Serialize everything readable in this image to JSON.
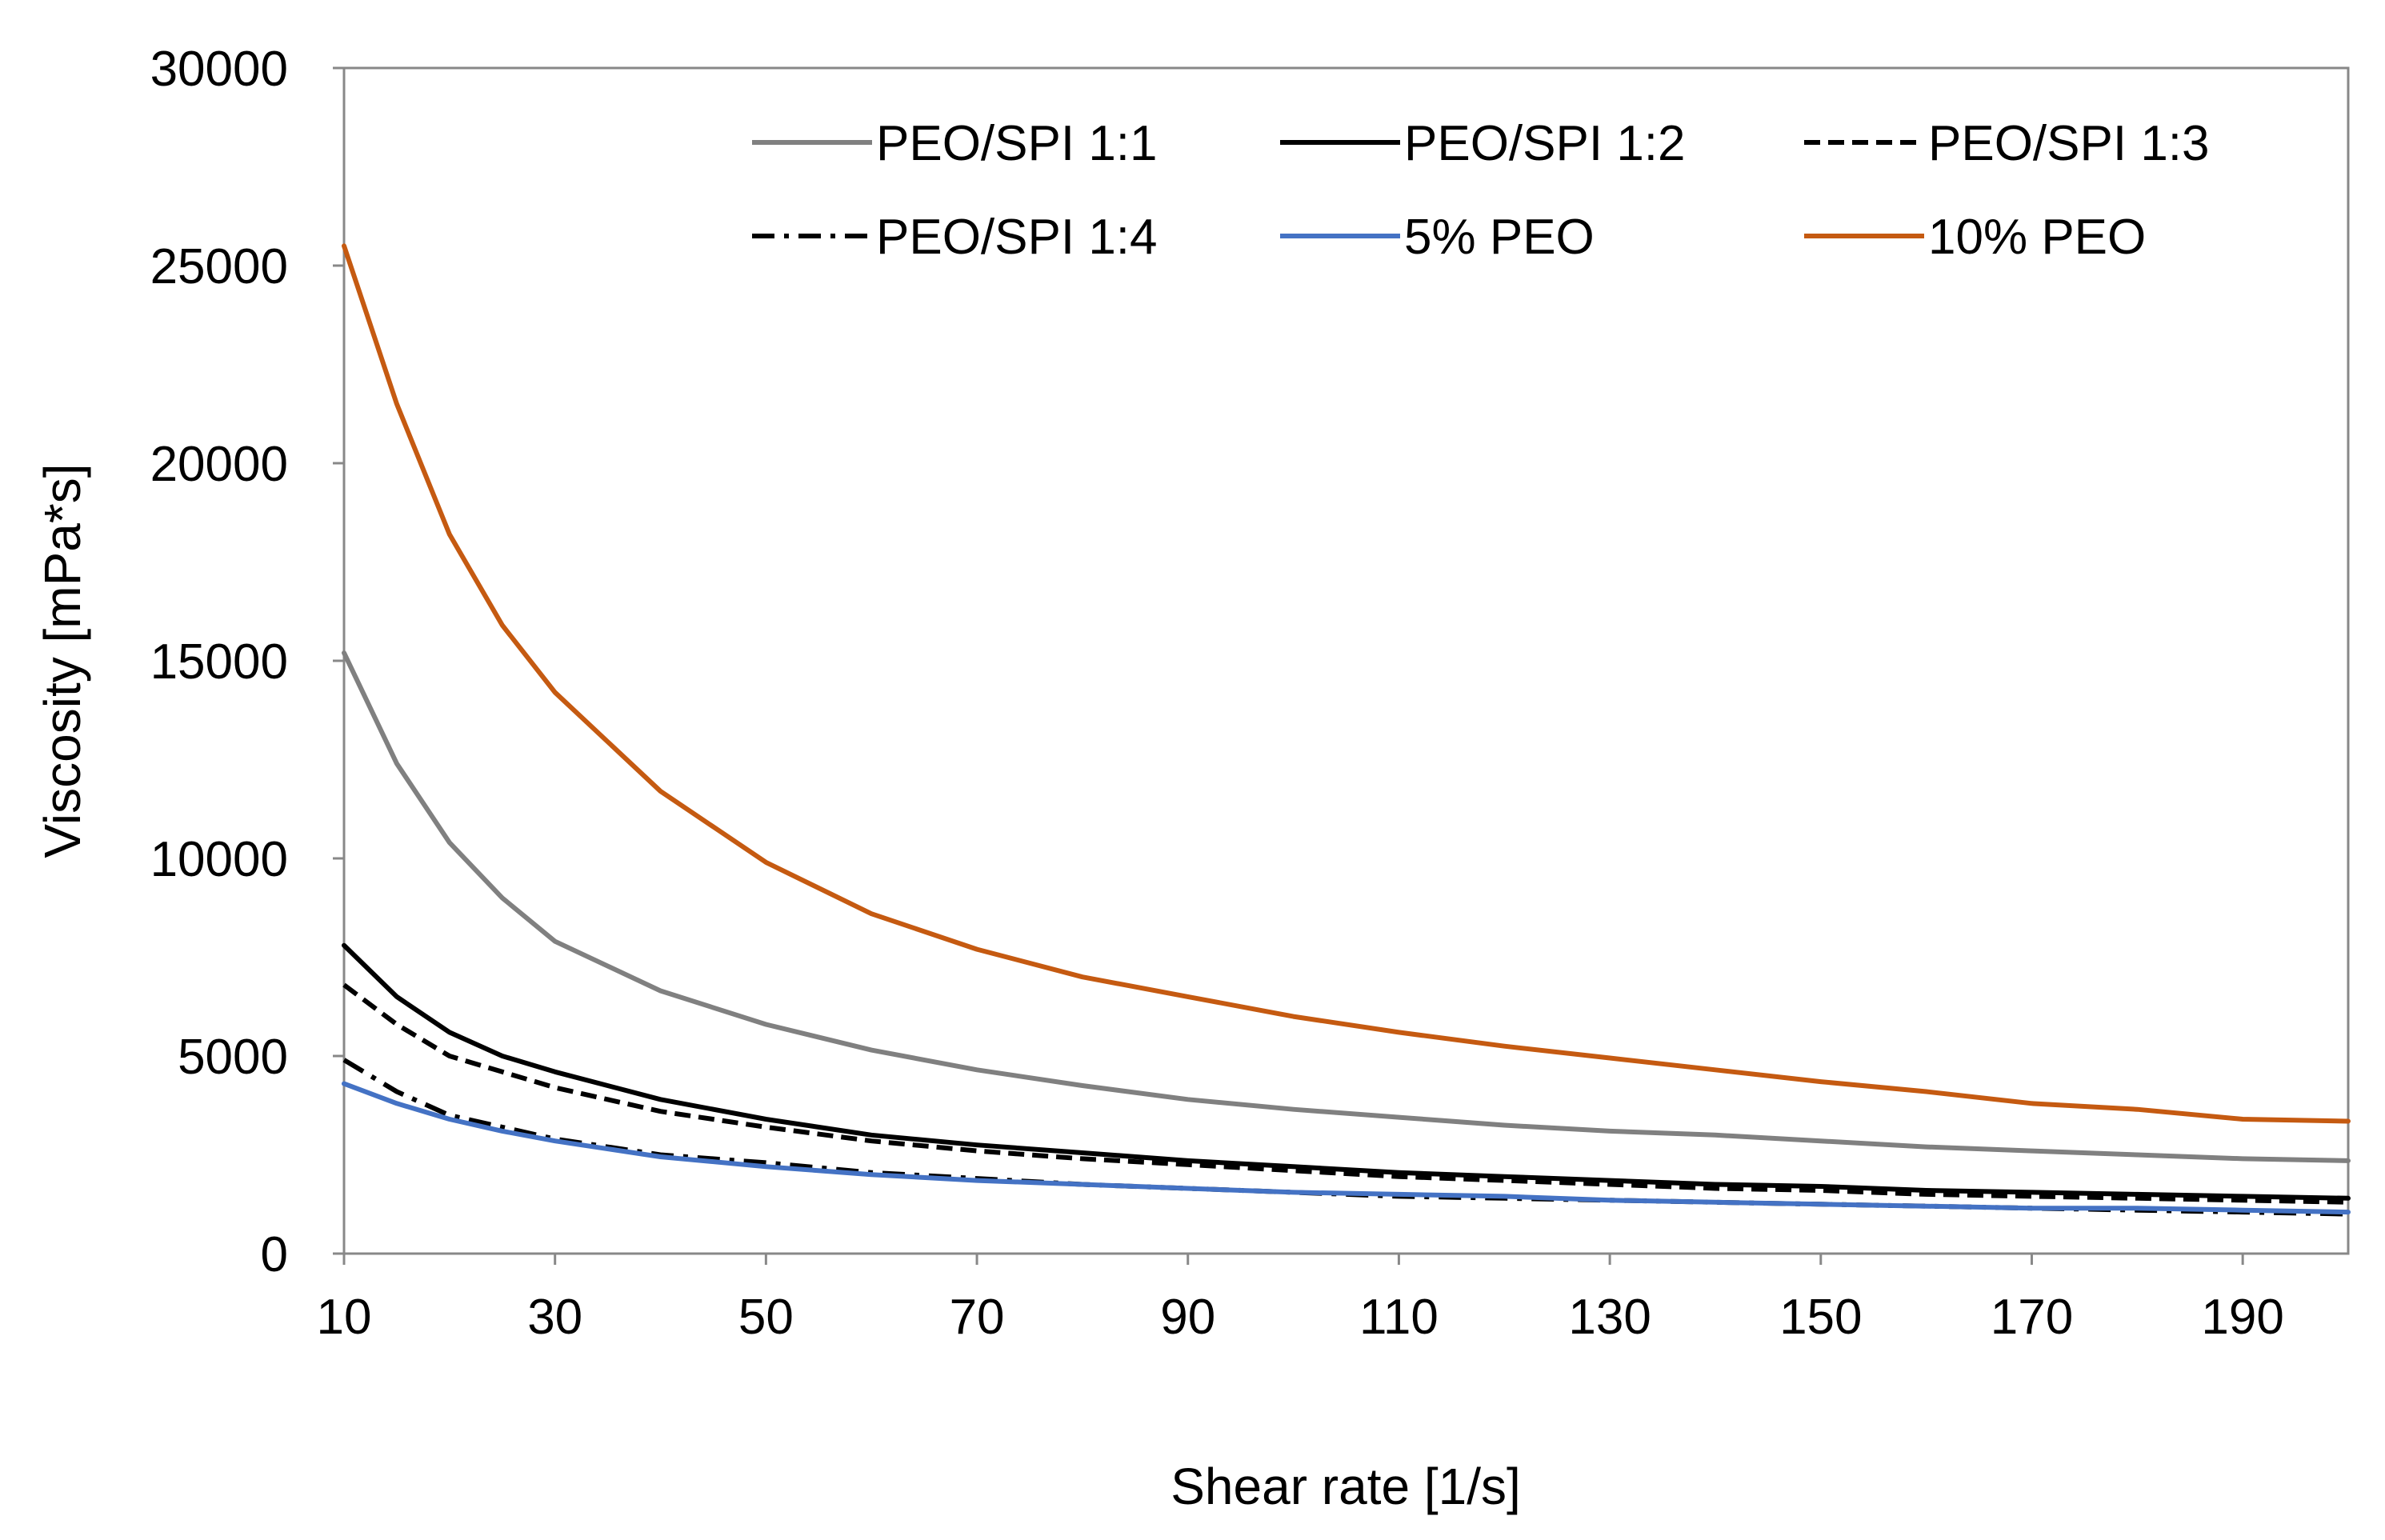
{
  "chart_data": {
    "type": "line",
    "title": "",
    "xlabel": "Shear rate [1/s]",
    "ylabel": "Viscosity [mPa*s]",
    "xlim": [
      10,
      200
    ],
    "ylim": [
      0,
      30000
    ],
    "x_ticks": [
      "10",
      "30",
      "50",
      "70",
      "90",
      "110",
      "130",
      "150",
      "170",
      "190"
    ],
    "y_ticks": [
      "0",
      "5000",
      "10000",
      "15000",
      "20000",
      "25000",
      "30000"
    ],
    "grid": false,
    "legend_position": "top",
    "x": [
      10,
      15,
      20,
      25,
      30,
      40,
      50,
      60,
      70,
      80,
      90,
      100,
      110,
      120,
      130,
      140,
      150,
      160,
      170,
      180,
      190,
      200
    ],
    "series": [
      {
        "name": "PEO/SPI 1:1",
        "color": "#808080",
        "dash": "solid",
        "values": [
          15200,
          12400,
          10400,
          9000,
          7900,
          6650,
          5800,
          5150,
          4650,
          4250,
          3900,
          3650,
          3450,
          3250,
          3100,
          3000,
          2850,
          2700,
          2600,
          2500,
          2400,
          2350
        ]
      },
      {
        "name": "PEO/SPI 1:2",
        "color": "#000000",
        "dash": "solid",
        "values": [
          7800,
          6500,
          5600,
          5000,
          4600,
          3900,
          3400,
          3000,
          2750,
          2550,
          2350,
          2200,
          2050,
          1950,
          1850,
          1750,
          1700,
          1600,
          1550,
          1500,
          1450,
          1400
        ]
      },
      {
        "name": "PEO/SPI 1:3",
        "color": "#000000",
        "dash": "dashed",
        "values": [
          6800,
          5800,
          5000,
          4600,
          4200,
          3600,
          3200,
          2850,
          2600,
          2400,
          2250,
          2100,
          1950,
          1850,
          1750,
          1650,
          1600,
          1500,
          1450,
          1400,
          1350,
          1300
        ]
      },
      {
        "name": "PEO/SPI 1:4",
        "color": "#000000",
        "dash": "dashdot",
        "values": [
          4900,
          4100,
          3500,
          3200,
          2900,
          2500,
          2300,
          2050,
          1900,
          1750,
          1650,
          1550,
          1450,
          1400,
          1350,
          1300,
          1250,
          1200,
          1150,
          1100,
          1050,
          1000
        ]
      },
      {
        "name": "5% PEO",
        "color": "#4472C4",
        "dash": "solid",
        "values": [
          4300,
          3800,
          3400,
          3100,
          2850,
          2450,
          2200,
          2000,
          1850,
          1750,
          1650,
          1550,
          1500,
          1450,
          1350,
          1300,
          1250,
          1200,
          1150,
          1150,
          1100,
          1050
        ]
      },
      {
        "name": "10% PEO",
        "color": "#C55A11",
        "dash": "solid",
        "values": [
          25500,
          21500,
          18200,
          15900,
          14200,
          11700,
          9900,
          8600,
          7700,
          7000,
          6500,
          6000,
          5600,
          5250,
          4950,
          4650,
          4350,
          4100,
          3800,
          3650,
          3400,
          3350
        ]
      }
    ]
  }
}
